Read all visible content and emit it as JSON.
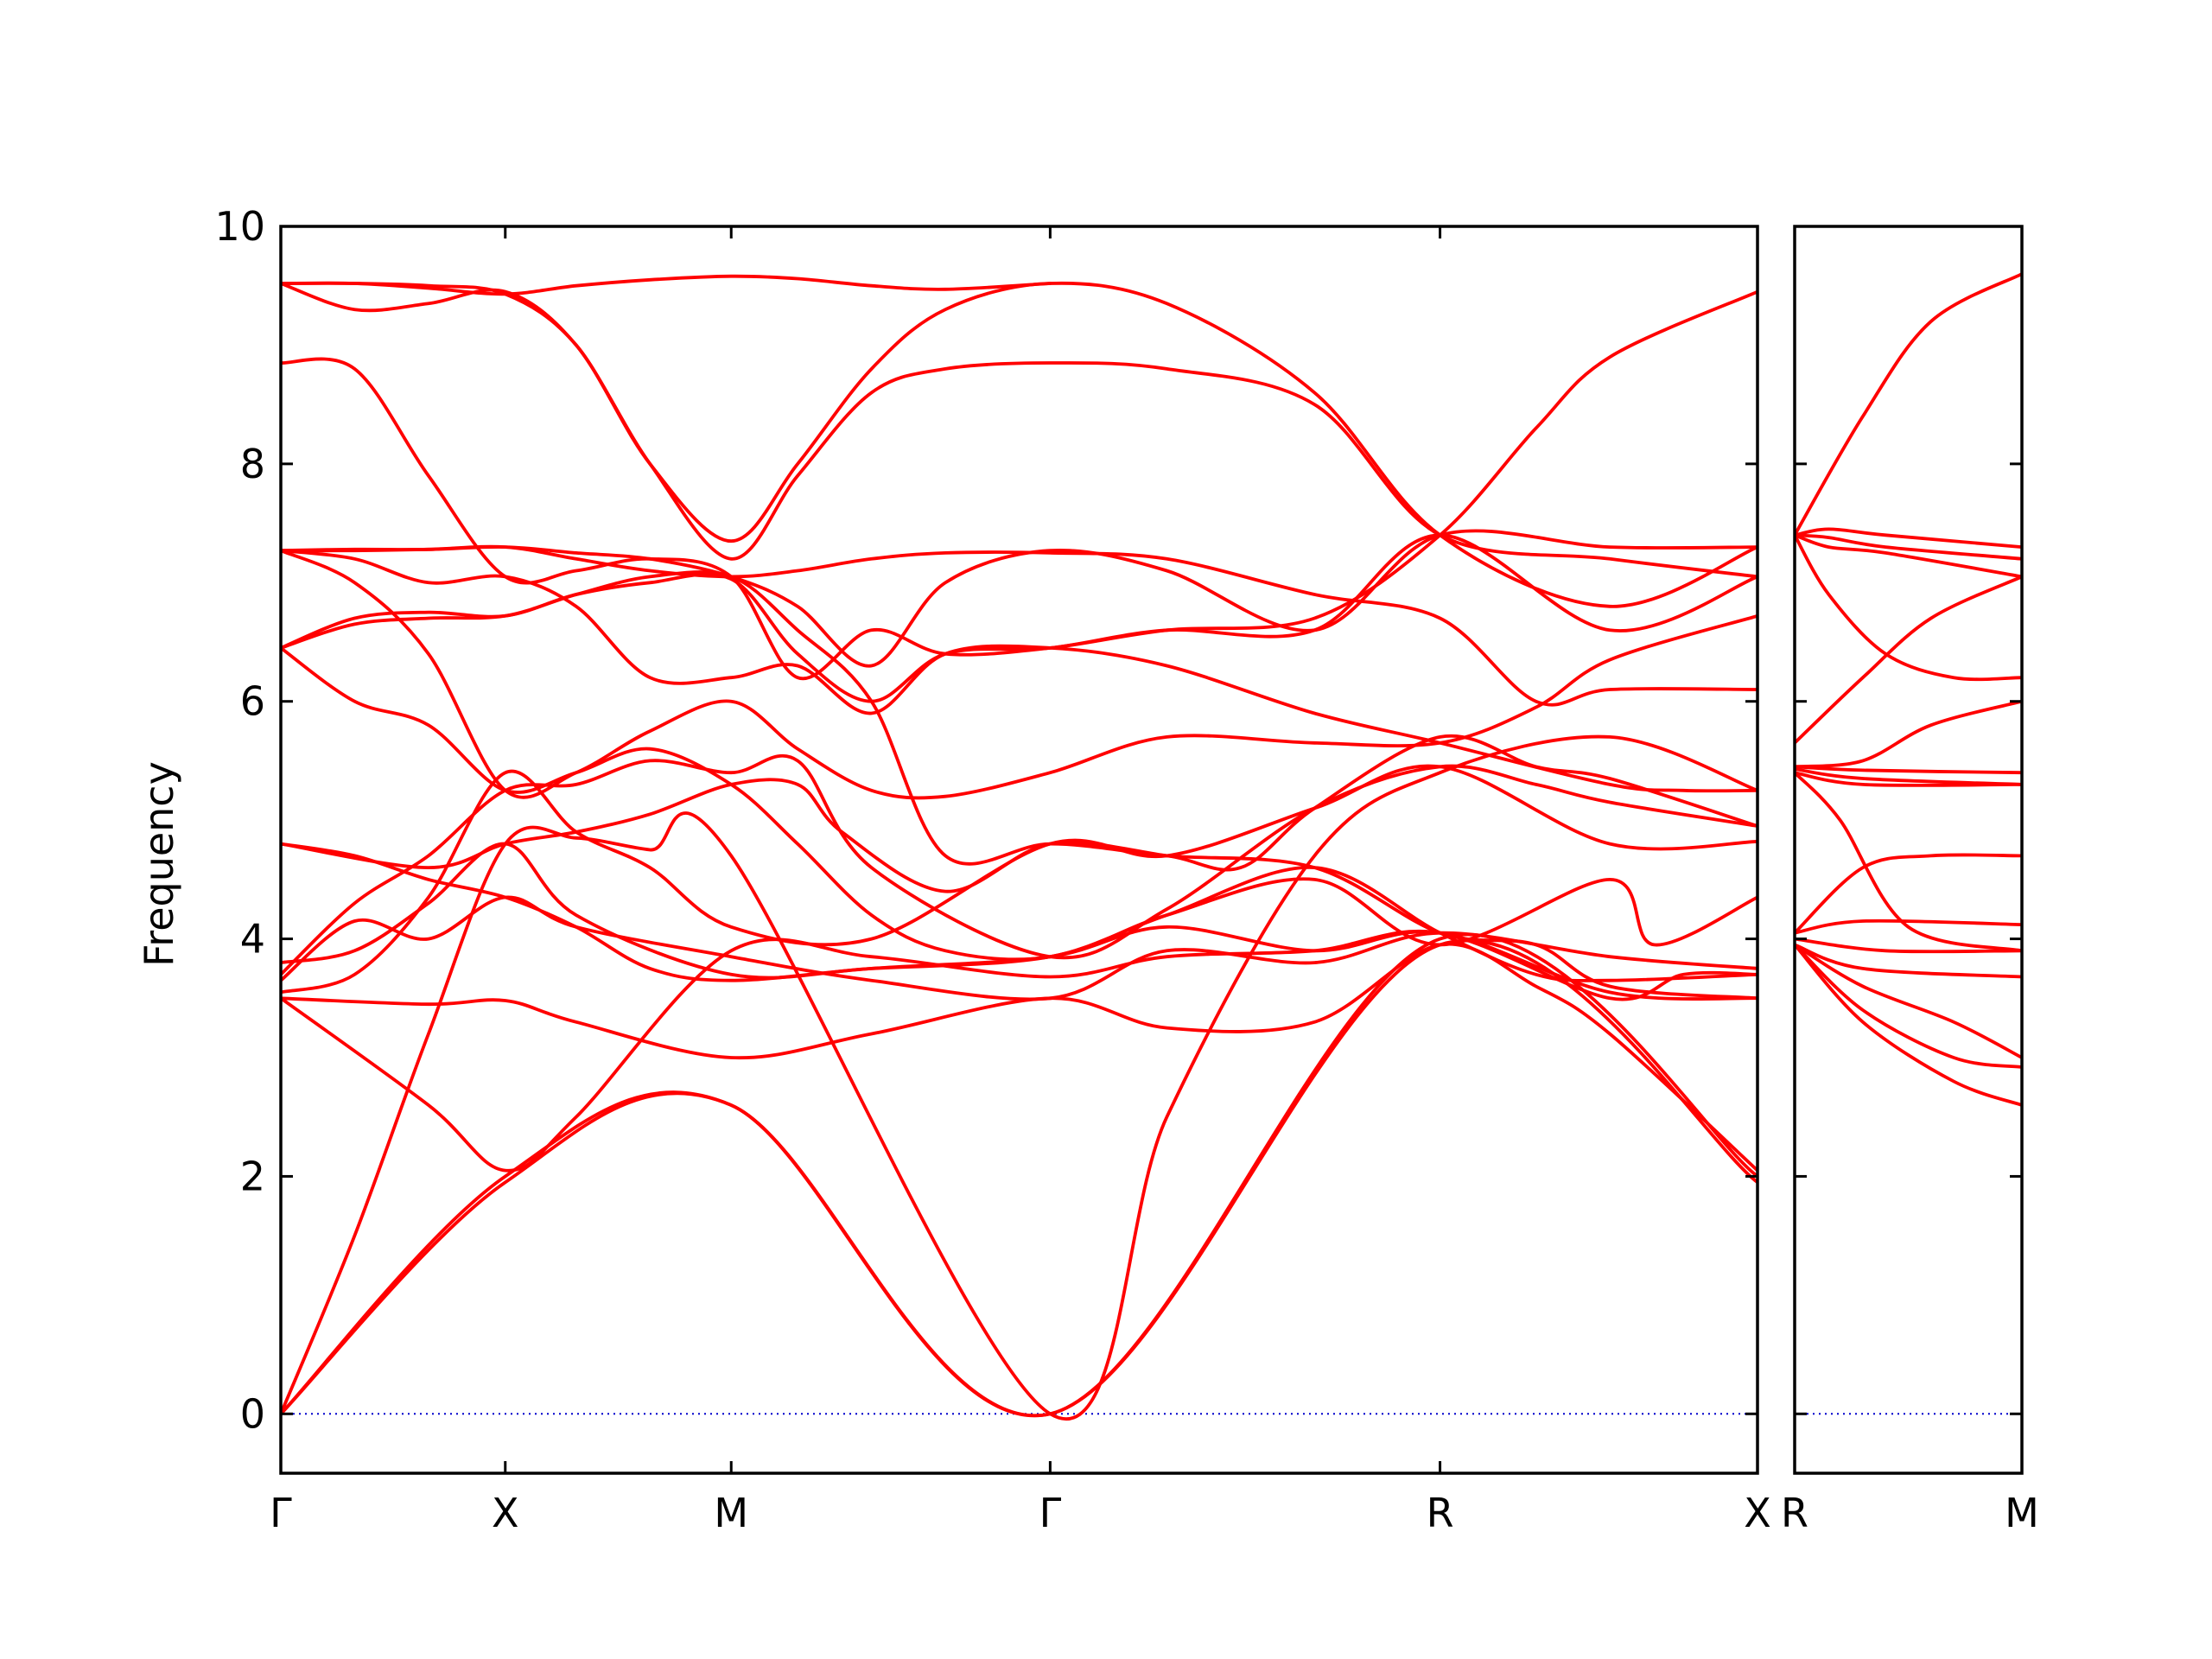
{
  "chart_data": {
    "type": "line",
    "ylabel": "Frequency",
    "ylim": [
      -0.5,
      10
    ],
    "yticks": [
      0,
      2,
      4,
      6,
      8,
      10
    ],
    "grid": false,
    "colors": {
      "bands": "#ff0000",
      "zero_line": "#0000cc"
    },
    "panels": [
      {
        "xlim": [
          0,
          1.0
        ],
        "xticks": [
          {
            "x": 0.0,
            "label": "Γ"
          },
          {
            "x": 0.152,
            "label": "X"
          },
          {
            "x": 0.305,
            "label": "M"
          },
          {
            "x": 0.521,
            "label": "Γ"
          },
          {
            "x": 0.785,
            "label": "R"
          },
          {
            "x": 1.0,
            "label": "X"
          }
        ],
        "series": [
          {
            "x": [
              0,
              0.152,
              0.305,
              0.521,
              0.785,
              1.0
            ],
            "y": [
              0,
              1.95,
              2.6,
              0,
              3.95,
              1.95
            ]
          },
          {
            "x": [
              0,
              0.152,
              0.305,
              0.521,
              0.785,
              1.0
            ],
            "y": [
              0,
              2.0,
              2.6,
              0,
              4.0,
              2.0
            ]
          },
          {
            "x": [
              0,
              0.05,
              0.1,
              0.152,
              0.2,
              0.25,
              0.305,
              0.521,
              0.6,
              0.7,
              0.785,
              0.9,
              1.0
            ],
            "y": [
              0,
              1.5,
              3.2,
              4.8,
              4.85,
              4.75,
              4.7,
              0,
              2.5,
              4.7,
              5.4,
              5.7,
              5.25
            ]
          },
          {
            "x": [
              0,
              0.1,
              0.152,
              0.2,
              0.305,
              0.4,
              0.521,
              0.6,
              0.7,
              0.785,
              0.85,
              0.9,
              1.0
            ],
            "y": [
              3.5,
              3.45,
              3.48,
              3.3,
              3.0,
              3.2,
              3.5,
              3.25,
              3.3,
              3.95,
              3.6,
              3.2,
              2.05
            ]
          },
          {
            "x": [
              0,
              0.1,
              0.152,
              0.2,
              0.305,
              0.4,
              0.521,
              0.6,
              0.7,
              0.785,
              0.9,
              0.95,
              1.0
            ],
            "y": [
              3.5,
              2.6,
              2.05,
              2.5,
              3.9,
              3.85,
              3.68,
              3.85,
              3.9,
              4.05,
              3.5,
              3.7,
              3.7
            ]
          },
          {
            "x": [
              0,
              0.05,
              0.1,
              0.152,
              0.2,
              0.305,
              0.4,
              0.521,
              0.6,
              0.7,
              0.785,
              0.9,
              1.0
            ],
            "y": [
              3.65,
              4.15,
              4.0,
              4.35,
              4.1,
              3.85,
              3.65,
              3.5,
              3.9,
              3.8,
              4.05,
              3.85,
              3.75
            ]
          },
          {
            "x": [
              0,
              0.05,
              0.1,
              0.152,
              0.2,
              0.305,
              0.4,
              0.521,
              0.6,
              0.7,
              0.785,
              0.9,
              0.93,
              1.0
            ],
            "y": [
              3.8,
              3.9,
              4.3,
              4.8,
              4.2,
              3.7,
              3.75,
              3.85,
              4.2,
              4.5,
              3.95,
              4.5,
              3.95,
              4.35
            ]
          },
          {
            "x": [
              0,
              0.05,
              0.1,
              0.152,
              0.2,
              0.25,
              0.305,
              0.4,
              0.521,
              0.6,
              0.7,
              0.785,
              0.9,
              1.0
            ],
            "y": [
              4.8,
              4.7,
              4.5,
              4.35,
              4.1,
              3.75,
              3.65,
              3.75,
              3.85,
              4.1,
              3.9,
              4.05,
              3.55,
              3.5
            ]
          },
          {
            "x": [
              0,
              0.05,
              0.1,
              0.152,
              0.2,
              0.25,
              0.305,
              0.4,
              0.521,
              0.6,
              0.7,
              0.785,
              0.9,
              1.0
            ],
            "y": [
              3.55,
              3.7,
              4.35,
              5.4,
              4.9,
              4.6,
              4.1,
              4.0,
              4.8,
              4.7,
              5.1,
              5.45,
              4.8,
              4.82
            ]
          },
          {
            "x": [
              0,
              0.1,
              0.152,
              0.2,
              0.25,
              0.305,
              0.35,
              0.38,
              0.45,
              0.521,
              0.6,
              0.65,
              0.7,
              0.785,
              0.85,
              0.9,
              1.0
            ],
            "y": [
              4.8,
              4.6,
              4.8,
              4.9,
              5.05,
              5.3,
              5.3,
              4.9,
              4.4,
              4.8,
              4.7,
              4.6,
              5.1,
              5.7,
              5.45,
              5.35,
              4.95
            ]
          },
          {
            "x": [
              0,
              0.05,
              0.1,
              0.152,
              0.2,
              0.25,
              0.305,
              0.35,
              0.4,
              0.521,
              0.6,
              0.7,
              0.785,
              0.85,
              0.9,
              1.0
            ],
            "y": [
              3.7,
              4.3,
              4.7,
              5.25,
              5.3,
              5.5,
              5.4,
              5.5,
              4.6,
              3.85,
              4.25,
              5.1,
              5.45,
              5.3,
              5.15,
              4.95
            ]
          },
          {
            "x": [
              0,
              0.05,
              0.1,
              0.152,
              0.2,
              0.25,
              0.305,
              0.35,
              0.4,
              0.45,
              0.521,
              0.6,
              0.7,
              0.785,
              0.85,
              0.9,
              1.0
            ],
            "y": [
              6.45,
              6.0,
              5.8,
              5.25,
              5.4,
              5.6,
              5.3,
              4.8,
              4.2,
              3.9,
              3.85,
              4.2,
              4.6,
              4.05,
              3.7,
              3.65,
              3.7
            ]
          },
          {
            "x": [
              0,
              0.05,
              0.1,
              0.152,
              0.2,
              0.25,
              0.305,
              0.35,
              0.4,
              0.45,
              0.521,
              0.6,
              0.7,
              0.785,
              0.85,
              0.9,
              1.0
            ],
            "y": [
              6.45,
              6.65,
              6.7,
              6.72,
              6.9,
              7.05,
              7.05,
              6.6,
              6.0,
              4.7,
              4.8,
              4.7,
              4.6,
              4.05,
              3.95,
              3.6,
              3.5
            ]
          },
          {
            "x": [
              0,
              0.05,
              0.1,
              0.152,
              0.2,
              0.25,
              0.305,
              0.35,
              0.4,
              0.45,
              0.521,
              0.6,
              0.7,
              0.785,
              0.85,
              0.9,
              1.0
            ],
            "y": [
              7.27,
              7.0,
              6.4,
              5.25,
              5.4,
              5.75,
              6.0,
              5.6,
              5.25,
              5.2,
              5.4,
              5.7,
              5.65,
              5.65,
              5.95,
              6.35,
              6.72
            ]
          },
          {
            "x": [
              0,
              0.05,
              0.1,
              0.152,
              0.2,
              0.25,
              0.305,
              0.35,
              0.4,
              0.45,
              0.521,
              0.6,
              0.7,
              0.785,
              0.85,
              0.9,
              1.0
            ],
            "y": [
              7.27,
              7.27,
              7.28,
              7.3,
              7.2,
              7.1,
              7.05,
              7.1,
              7.2,
              7.25,
              7.25,
              7.2,
              6.9,
              6.7,
              6.0,
              6.1,
              6.1
            ]
          },
          {
            "x": [
              0,
              0.05,
              0.1,
              0.152,
              0.2,
              0.25,
              0.305,
              0.35,
              0.4,
              0.45,
              0.521,
              0.6,
              0.7,
              0.785,
              0.9,
              1.0
            ],
            "y": [
              6.45,
              6.7,
              6.75,
              6.72,
              6.9,
              7.0,
              7.03,
              6.4,
              6.0,
              6.4,
              6.45,
              6.6,
              6.6,
              7.4,
              6.6,
              7.05
            ]
          },
          {
            "x": [
              0,
              0.05,
              0.1,
              0.152,
              0.2,
              0.25,
              0.305,
              0.35,
              0.4,
              0.45,
              0.521,
              0.6,
              0.7,
              0.785,
              0.9,
              0.95,
              1.0
            ],
            "y": [
              7.27,
              7.2,
              7.0,
              7.05,
              6.8,
              6.2,
              6.2,
              6.3,
              5.9,
              6.4,
              6.45,
              6.3,
              5.9,
              5.65,
              5.3,
              5.25,
              5.25
            ]
          },
          {
            "x": [
              0,
              0.05,
              0.1,
              0.152,
              0.2,
              0.25,
              0.305,
              0.35,
              0.4,
              0.45,
              0.521,
              0.6,
              0.7,
              0.785,
              0.9,
              1.0
            ],
            "y": [
              7.27,
              7.28,
              7.28,
              7.3,
              7.25,
              7.2,
              7.05,
              6.8,
              6.3,
              7.0,
              7.27,
              7.1,
              6.6,
              7.4,
              7.3,
              7.3
            ]
          },
          {
            "x": [
              0,
              0.05,
              0.1,
              0.152,
              0.2,
              0.25,
              0.305,
              0.35,
              0.4,
              0.45,
              0.521,
              0.6,
              0.7,
              0.785,
              0.85,
              0.9,
              1.0
            ],
            "y": [
              8.85,
              8.8,
              7.9,
              7.05,
              7.1,
              7.2,
              7.05,
              6.2,
              6.6,
              6.4,
              6.45,
              6.6,
              6.7,
              7.4,
              8.3,
              8.9,
              9.45
            ]
          },
          {
            "x": [
              0,
              0.05,
              0.1,
              0.152,
              0.2,
              0.25,
              0.305,
              0.35,
              0.4,
              0.45,
              0.521,
              0.6,
              0.7,
              0.785,
              0.9,
              1.0
            ],
            "y": [
              9.52,
              9.3,
              9.35,
              9.45,
              9.0,
              8.0,
              7.2,
              7.9,
              8.6,
              8.8,
              8.85,
              8.8,
              8.5,
              7.4,
              7.2,
              7.05
            ]
          },
          {
            "x": [
              0,
              0.05,
              0.1,
              0.152,
              0.2,
              0.25,
              0.305,
              0.35,
              0.4,
              0.45,
              0.521,
              0.6,
              0.7,
              0.785,
              0.9,
              1.0
            ],
            "y": [
              9.52,
              9.52,
              9.5,
              9.43,
              9.0,
              8.0,
              7.35,
              8.0,
              8.8,
              9.3,
              9.52,
              9.35,
              8.6,
              7.4,
              6.8,
              7.3
            ]
          },
          {
            "x": [
              0,
              0.05,
              0.1,
              0.152,
              0.2,
              0.25,
              0.305,
              0.35,
              0.4,
              0.45,
              0.521
            ],
            "y": [
              9.52,
              9.52,
              9.48,
              9.43,
              9.5,
              9.55,
              9.58,
              9.56,
              9.5,
              9.47,
              9.52
            ]
          }
        ]
      },
      {
        "xlim": [
          0,
          1.0
        ],
        "xticks": [
          {
            "x": 0.0,
            "label": "R"
          },
          {
            "x": 1.0,
            "label": "M"
          }
        ],
        "series": [
          {
            "x": [
              0,
              0.3,
              0.6,
              1.0
            ],
            "y": [
              7.4,
              8.4,
              9.2,
              9.6
            ]
          },
          {
            "x": [
              0,
              0.15,
              0.4,
              1.0
            ],
            "y": [
              7.4,
              7.45,
              7.4,
              7.3
            ]
          },
          {
            "x": [
              0,
              0.15,
              0.4,
              1.0
            ],
            "y": [
              7.4,
              7.38,
              7.3,
              7.2
            ]
          },
          {
            "x": [
              0,
              0.15,
              0.4,
              1.0
            ],
            "y": [
              7.4,
              7.3,
              7.25,
              7.05
            ]
          },
          {
            "x": [
              0,
              0.15,
              0.4,
              0.7,
              1.0
            ],
            "y": [
              7.4,
              6.9,
              6.4,
              6.2,
              6.2
            ]
          },
          {
            "x": [
              0,
              0.3,
              0.6,
              1.0
            ],
            "y": [
              5.65,
              6.2,
              6.7,
              7.05
            ]
          },
          {
            "x": [
              0,
              0.3,
              0.6,
              1.0
            ],
            "y": [
              5.45,
              5.5,
              5.8,
              6.0
            ]
          },
          {
            "x": [
              0,
              0.3,
              1.0
            ],
            "y": [
              5.45,
              5.42,
              5.4
            ]
          },
          {
            "x": [
              0,
              0.3,
              1.0
            ],
            "y": [
              5.43,
              5.35,
              5.3
            ]
          },
          {
            "x": [
              0,
              0.3,
              1.0
            ],
            "y": [
              5.4,
              5.3,
              5.3
            ]
          },
          {
            "x": [
              0,
              0.2,
              0.5,
              1.0
            ],
            "y": [
              5.4,
              5.0,
              4.1,
              3.9
            ]
          },
          {
            "x": [
              0,
              0.3,
              0.6,
              1.0
            ],
            "y": [
              4.05,
              4.6,
              4.7,
              4.7
            ]
          },
          {
            "x": [
              0,
              0.3,
              1.0
            ],
            "y": [
              4.05,
              4.15,
              4.12
            ]
          },
          {
            "x": [
              0,
              0.4,
              1.0
            ],
            "y": [
              4.0,
              3.9,
              3.9
            ]
          },
          {
            "x": [
              0,
              0.3,
              1.0
            ],
            "y": [
              3.95,
              3.75,
              3.68
            ]
          },
          {
            "x": [
              0,
              0.3,
              0.7,
              1.0
            ],
            "y": [
              3.95,
              3.6,
              3.3,
              3.0
            ]
          },
          {
            "x": [
              0,
              0.3,
              0.7,
              1.0
            ],
            "y": [
              3.95,
              3.4,
              3.0,
              2.92
            ]
          },
          {
            "x": [
              0,
              0.3,
              0.7,
              1.0
            ],
            "y": [
              3.95,
              3.3,
              2.8,
              2.6
            ]
          }
        ]
      }
    ]
  }
}
